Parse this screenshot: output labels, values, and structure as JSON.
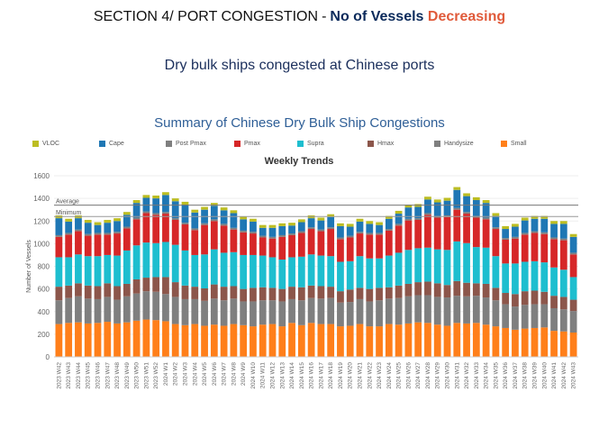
{
  "header": {
    "prefix": "SECTION 4/ PORT CONGESTION",
    "separator": "-",
    "metric": "No of Vessels",
    "trend": "Decreasing",
    "accent_metric_color": "#0b2a5b",
    "accent_trend_color": "#e05a3a"
  },
  "subheading": "Dry bulk ships congested at Chinese ports",
  "chart_title": "Summary of Chinese Dry Bulk Ship Congestions",
  "chart_data": {
    "type": "bar",
    "title": "Weekly Trends",
    "xlabel": "",
    "ylabel": "Number of Vessels",
    "ylim": [
      0,
      1600
    ],
    "yticks": [
      0,
      200,
      400,
      600,
      800,
      1000,
      1200,
      1400,
      1600
    ],
    "reference_lines": [
      {
        "label": "Average",
        "value": 1340,
        "color": "#777777"
      },
      {
        "label": "Minimum",
        "value": 1240,
        "color": "#999999"
      }
    ],
    "categories": [
      "2023 W42",
      "2023 W43",
      "2023 W44",
      "2023 W45",
      "2023 W46",
      "2023 W47",
      "2023 W48",
      "2023 W49",
      "2023 W50",
      "2023 W51",
      "2023 W52",
      "2024 W1",
      "2024 W2",
      "2024 W3",
      "2024 W4",
      "2024 W5",
      "2024 W6",
      "2024 W7",
      "2024 W8",
      "2024 W9",
      "2024 W10",
      "2024 W11",
      "2024 W12",
      "2024 W13",
      "2024 W14",
      "2024 W15",
      "2024 W16",
      "2024 W17",
      "2024 W18",
      "2024 W19",
      "2024 W20",
      "2024 W21",
      "2024 W22",
      "2024 W23",
      "2024 W24",
      "2024 W25",
      "2024 W26",
      "2024 W27",
      "2024 W28",
      "2024 W29",
      "2024 W30",
      "2024 W31",
      "2024 W32",
      "2024 W33",
      "2024 W34",
      "2024 W35",
      "2024 W36",
      "2024 W37",
      "2024 W38",
      "2024 W39",
      "2024 W40",
      "2024 W41",
      "2024 W42",
      "2024 W43"
    ],
    "tick_labels": [
      "2023 W42",
      "2023 W43",
      "2023 W44",
      "2023 W45",
      "2023 W46",
      "2023 W47",
      "2023 W48",
      "2023 W49",
      "2023 W50",
      "2023 W51",
      "2023 W52",
      "2024 W1",
      "2024 W2",
      "2024 W3",
      "2024 W4",
      "2024 W5",
      "2024 W6",
      "2024 W7",
      "2024 W8",
      "2024 W9",
      "2024 W10",
      "2024 W11",
      "2024 W12",
      "2024 W13",
      "2024 W14",
      "2024 W15",
      "2024 W16",
      "2024 W17",
      "2024 W18",
      "2024 W19",
      "2024 W20",
      "2024 W21",
      "2024 W22",
      "2024 W23",
      "2024 W24",
      "2024 W25",
      "2024 W26",
      "2024 W27",
      "2024 W28",
      "2024 W29",
      "2024 W30",
      "2024 W31",
      "2024 W32",
      "2024 W33",
      "2024 W34",
      "2024 W35",
      "2024 W36",
      "2024 W37",
      "2024 W38",
      "2024 W39",
      "2024 W40",
      "2024 W41",
      "2024 W42",
      "2024 W43"
    ],
    "series": [
      {
        "name": "Small",
        "color": "#ff7f1a",
        "values": [
          290,
          300,
          305,
          295,
          300,
          310,
          295,
          305,
          320,
          330,
          325,
          315,
          290,
          280,
          290,
          275,
          285,
          275,
          290,
          280,
          270,
          285,
          290,
          270,
          300,
          280,
          300,
          290,
          290,
          270,
          275,
          290,
          270,
          270,
          290,
          285,
          295,
          305,
          300,
          285,
          275,
          300,
          295,
          300,
          285,
          270,
          255,
          240,
          250,
          255,
          260,
          230,
          225,
          215
        ]
      },
      {
        "name": "Handysize",
        "color": "#7f7f7f",
        "values": [
          210,
          220,
          230,
          220,
          210,
          220,
          210,
          230,
          240,
          250,
          250,
          240,
          240,
          230,
          220,
          220,
          230,
          225,
          225,
          210,
          220,
          215,
          210,
          220,
          210,
          220,
          220,
          225,
          230,
          210,
          210,
          220,
          220,
          230,
          225,
          235,
          240,
          240,
          245,
          245,
          250,
          240,
          240,
          240,
          240,
          230,
          210,
          205,
          210,
          210,
          205,
          200,
          195,
          190
        ]
      },
      {
        "name": "Hmax",
        "color": "#8c564b",
        "values": [
          120,
          110,
          115,
          115,
          115,
          120,
          120,
          110,
          125,
          120,
          130,
          150,
          130,
          120,
          110,
          110,
          125,
          120,
          110,
          110,
          120,
          115,
          110,
          110,
          110,
          115,
          110,
          110,
          100,
          100,
          110,
          100,
          110,
          110,
          100,
          110,
          110,
          115,
          120,
          120,
          110,
          130,
          120,
          110,
          120,
          110,
          100,
          110,
          120,
          120,
          110,
          110,
          110,
          100
        ]
      },
      {
        "name": "Supra",
        "color": "#1ebecf",
        "values": [
          260,
          250,
          255,
          260,
          265,
          250,
          270,
          295,
          300,
          310,
          300,
          310,
          330,
          310,
          280,
          300,
          310,
          300,
          300,
          300,
          290,
          280,
          270,
          260,
          260,
          270,
          275,
          270,
          270,
          260,
          250,
          280,
          270,
          260,
          280,
          290,
          300,
          300,
          300,
          300,
          310,
          350,
          350,
          320,
          320,
          280,
          260,
          270,
          260,
          260,
          260,
          250,
          240,
          200
        ]
      },
      {
        "name": "Pmax",
        "color": "#d62728",
        "values": [
          180,
          200,
          205,
          180,
          190,
          180,
          195,
          195,
          230,
          260,
          250,
          250,
          220,
          230,
          220,
          260,
          250,
          240,
          200,
          200,
          190,
          160,
          165,
          200,
          195,
          210,
          225,
          215,
          240,
          200,
          210,
          200,
          210,
          210,
          220,
          240,
          260,
          250,
          290,
          280,
          290,
          280,
          260,
          260,
          250,
          240,
          210,
          220,
          240,
          250,
          250,
          250,
          260,
          200
        ]
      },
      {
        "name": "Post Pmax",
        "color": "#7f7f7f",
        "values": [
          15,
          15,
          15,
          15,
          15,
          15,
          15,
          15,
          15,
          15,
          15,
          15,
          15,
          15,
          15,
          15,
          15,
          15,
          15,
          15,
          15,
          15,
          15,
          15,
          15,
          15,
          15,
          15,
          15,
          15,
          15,
          15,
          15,
          15,
          15,
          15,
          15,
          15,
          15,
          15,
          15,
          15,
          15,
          15,
          15,
          15,
          15,
          15,
          15,
          15,
          15,
          15,
          15,
          15
        ]
      },
      {
        "name": "Cape",
        "color": "#1f77b4",
        "values": [
          150,
          100,
          100,
          100,
          70,
          90,
          95,
          105,
          130,
          120,
          130,
          150,
          150,
          160,
          140,
          120,
          120,
          120,
          130,
          100,
          90,
          70,
          80,
          80,
          70,
          80,
          80,
          80,
          90,
          100,
          80,
          90,
          80,
          70,
          90,
          90,
          100,
          100,
          120,
          120,
          130,
          160,
          140,
          140,
          130,
          100,
          80,
          90,
          110,
          110,
          120,
          120,
          130,
          140
        ]
      },
      {
        "name": "VLOC",
        "color": "#bcbd22",
        "values": [
          25,
          25,
          25,
          25,
          25,
          25,
          25,
          25,
          25,
          25,
          25,
          25,
          25,
          25,
          25,
          25,
          25,
          25,
          25,
          25,
          25,
          25,
          25,
          25,
          25,
          25,
          25,
          25,
          25,
          25,
          25,
          25,
          25,
          25,
          25,
          25,
          25,
          25,
          25,
          25,
          25,
          25,
          25,
          25,
          25,
          25,
          25,
          25,
          25,
          25,
          25,
          25,
          25,
          25
        ]
      }
    ],
    "legend": [
      {
        "name": "VLOC",
        "color": "#bcbd22"
      },
      {
        "name": "Cape",
        "color": "#1f77b4"
      },
      {
        "name": "Post Pmax",
        "color": "#7f7f7f"
      },
      {
        "name": "Pmax",
        "color": "#d62728"
      },
      {
        "name": "Supra",
        "color": "#1ebecf"
      },
      {
        "name": "Hmax",
        "color": "#8c564b"
      },
      {
        "name": "Handysize",
        "color": "#7f7f7f"
      },
      {
        "name": "Small",
        "color": "#ff7f1a"
      }
    ]
  }
}
